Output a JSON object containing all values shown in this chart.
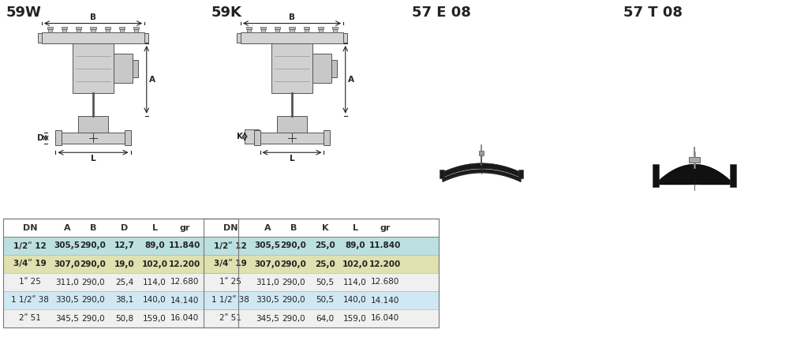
{
  "title_59W": "59W",
  "title_59K": "59K",
  "title_57E": "57 E 08",
  "title_57T": "57 T 08",
  "bg_color": "#ffffff",
  "headers_59W": [
    "DN",
    "A",
    "B",
    "D",
    "L",
    "gr"
  ],
  "headers_59K": [
    "DN",
    "A",
    "B",
    "K",
    "L",
    "gr"
  ],
  "rows_59W": [
    [
      "1/2ʺ",
      "12",
      "305,5",
      "290,0",
      "12,7",
      "89,0",
      "11.840"
    ],
    [
      "3/4ʺ",
      "19",
      "307,0",
      "290,0",
      "19,0",
      "102,0",
      "12.200"
    ],
    [
      "1ʺ",
      "25",
      "311,0",
      "290,0",
      "25,4",
      "114,0",
      "12.680"
    ],
    [
      "1 1/2ʺ",
      "38",
      "330,5",
      "290,0",
      "38,1",
      "140,0",
      "14.140"
    ],
    [
      "2ʺ",
      "51",
      "345,5",
      "290,0",
      "50,8",
      "159,0",
      "16.040"
    ]
  ],
  "rows_59K": [
    [
      "1/2ʺ",
      "12",
      "305,5",
      "290,0",
      "25,0",
      "89,0",
      "11.840"
    ],
    [
      "3/4ʺ",
      "19",
      "307,0",
      "290,0",
      "25,0",
      "102,0",
      "12.200"
    ],
    [
      "1ʺ",
      "25",
      "311,0",
      "290,0",
      "50,5",
      "114,0",
      "12.680"
    ],
    [
      "1 1/2ʺ",
      "38",
      "330,5",
      "290,0",
      "50,5",
      "140,0",
      "14.140"
    ],
    [
      "2ʺ",
      "51",
      "345,5",
      "290,0",
      "64,0",
      "159,0",
      "16.040"
    ]
  ],
  "row_colors": [
    "#b8dede",
    "#deded0",
    "#c8e8e8",
    "#deeef8",
    "#c8e8e8"
  ],
  "col_widths_59W": [
    52,
    22,
    38,
    38,
    34,
    38,
    46
  ],
  "col_widths_59K": [
    52,
    22,
    38,
    38,
    34,
    38,
    46
  ]
}
